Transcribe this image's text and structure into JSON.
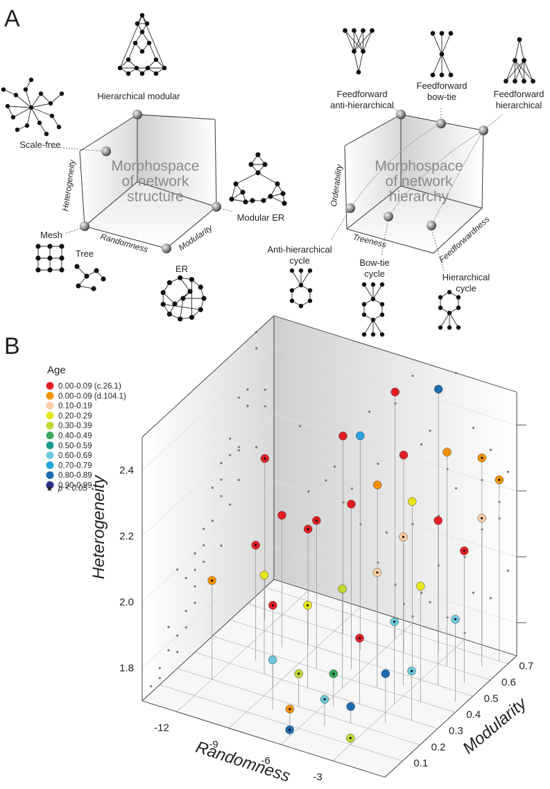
{
  "panel_a": {
    "label": "A",
    "structure": {
      "title": [
        "Morphospace",
        "of network",
        "structure"
      ],
      "axes": {
        "heterogeneity": "Heterogeneity",
        "randomness": "Randomness",
        "modularity": "Modularity"
      },
      "networks": {
        "hierarchical_modular": [
          "Hierarchical modular"
        ],
        "scale_free": [
          "Scale-free"
        ],
        "mesh": [
          "Mesh"
        ],
        "tree": [
          "Tree"
        ],
        "er": [
          "ER"
        ],
        "modular_er": [
          "Modular ER"
        ]
      }
    },
    "hierarchy": {
      "title": [
        "Morphospace",
        "of network",
        "hierarchy"
      ],
      "axes": {
        "orderability": "Orderability",
        "treeness": "Treeness",
        "feedforwardness": "Feedforwardness"
      },
      "networks": {
        "ff_anti": [
          "Feedforward",
          "anti-hierarchical"
        ],
        "ff_bowtie": [
          "Feedforward",
          "bow-tie"
        ],
        "ff_hier": [
          "Feedforward",
          "hierarchical"
        ],
        "anti_cycle": [
          "Anti-hierarchical",
          "cycle"
        ],
        "bowtie_cycle": [
          "Bow-tie",
          "cycle"
        ],
        "hier_cycle": [
          "Hierarchical",
          "cycle"
        ]
      }
    }
  },
  "chart_data": {
    "type": "scatter3d",
    "label": "B",
    "legend_title": "Age",
    "legend": [
      {
        "label": "0.00-0.09 (c.26.1)",
        "color": "#e31e24"
      },
      {
        "label": "0.00-0.09 (d.104.1)",
        "color": "#f39200"
      },
      {
        "label": "0.10-0.19",
        "color": "#f9cda3"
      },
      {
        "label": "0.20-0.29",
        "color": "#e8e61b"
      },
      {
        "label": "0.30-0.39",
        "color": "#c3d82e"
      },
      {
        "label": "0.40-0.49",
        "color": "#3aaa5c"
      },
      {
        "label": "0.50-0.59",
        "color": "#1a9b8f"
      },
      {
        "label": "0.60-0.69",
        "color": "#6ccbdb"
      },
      {
        "label": "0.70-0.79",
        "color": "#29a3dd"
      },
      {
        "label": "0.80-0.89",
        "color": "#1c6bb0"
      },
      {
        "label": "0.90-0.99",
        "color": "#2a3388"
      }
    ],
    "significance_label": "p < 0.05",
    "x_label": "Randomness",
    "y_label": "Modularity",
    "z_label": "Heterogeneity",
    "xlim": [
      -14,
      0
    ],
    "ylim": [
      0,
      0.75
    ],
    "zlim": [
      1.7,
      2.5
    ],
    "xticks": [
      -12,
      -9,
      -6,
      -3
    ],
    "yticks": [
      0.1,
      0.2,
      0.3,
      0.4,
      0.5,
      0.6,
      0.7
    ],
    "zticks": [
      1.8,
      {
        "value": 2,
        "label": "2.0"
      },
      2.2,
      2.4
    ],
    "x": [
      -12.5,
      -12,
      -11,
      -10.5,
      -10,
      -9.5,
      -9,
      -8.5,
      -8,
      -8,
      -7.5,
      -7,
      -7,
      -6.5,
      -6.5,
      -6,
      -6,
      -5.5,
      -5.5,
      -5,
      -5,
      -4.5,
      -4.5,
      -4,
      -4,
      -3.5,
      -3.5,
      -3,
      -3,
      -2.5,
      -2.5,
      -2,
      -2,
      -1.5,
      -1.5,
      -1,
      -1,
      -0.5,
      -0.5,
      -6
    ],
    "y": [
      0.55,
      0.2,
      0.35,
      0.45,
      0.3,
      0.5,
      0.25,
      0.6,
      0.4,
      0.15,
      0.3,
      0.55,
      0.2,
      0.45,
      0.1,
      0.65,
      0.35,
      0.25,
      0.5,
      0.6,
      0.15,
      0.4,
      0.3,
      0.55,
      0.2,
      0.65,
      0.45,
      0.35,
      0.1,
      0.6,
      0.25,
      0.5,
      0.4,
      0.7,
      0.3,
      0.55,
      0.65,
      0.45,
      0.7,
      0.05
    ],
    "z": [
      2.19,
      2.0,
      2.05,
      2.1,
      2.0,
      2.05,
      1.95,
      2.3,
      2.15,
      1.85,
      1.95,
      2.35,
      1.8,
      2.2,
      1.75,
      2.45,
      2.0,
      1.8,
      2.25,
      2.3,
      1.78,
      2.05,
      1.9,
      2.2,
      1.75,
      2.5,
      2.15,
      1.95,
      1.72,
      2.35,
      1.85,
      2.2,
      2.05,
      2.3,
      1.85,
      2.1,
      2.15,
      1.95,
      2.25,
      1.72
    ],
    "group": [
      0,
      1,
      0,
      0,
      3,
      0,
      0,
      0,
      0,
      7,
      3,
      8,
      4,
      0,
      1,
      0,
      4,
      5,
      1,
      0,
      7,
      2,
      0,
      3,
      9,
      9,
      2,
      7,
      4,
      1,
      9,
      0,
      3,
      1,
      7,
      0,
      2,
      7,
      1,
      9
    ],
    "significant": [
      true,
      true,
      true,
      false,
      false,
      true,
      true,
      false,
      true,
      false,
      true,
      false,
      true,
      false,
      true,
      false,
      false,
      true,
      false,
      false,
      true,
      true,
      true,
      false,
      false,
      false,
      true,
      true,
      true,
      false,
      false,
      false,
      false,
      true,
      true,
      true,
      true,
      true,
      true,
      true
    ]
  }
}
